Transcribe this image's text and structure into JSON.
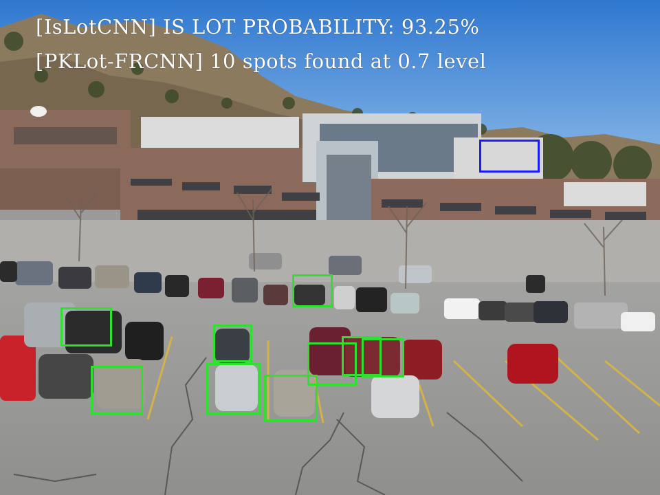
{
  "overlay": {
    "is_lot_line": "[IsLotCNN] IS LOT PROBABILITY: 93.25%",
    "spots_line": "[PKLot-FRCNN] 10 spots found at 0.7 level"
  },
  "detections": {
    "spots_found": 10,
    "confidence_level": 0.7,
    "is_lot_probability": 0.9325,
    "spot_color": "#2fe12f",
    "lot_color": "#1a1aff"
  },
  "colors": {
    "sky": "#4f8fd6",
    "asphalt": "#9a9a9a",
    "building_brick": "#8a6a5a",
    "hillside": "#8b7a5e"
  }
}
